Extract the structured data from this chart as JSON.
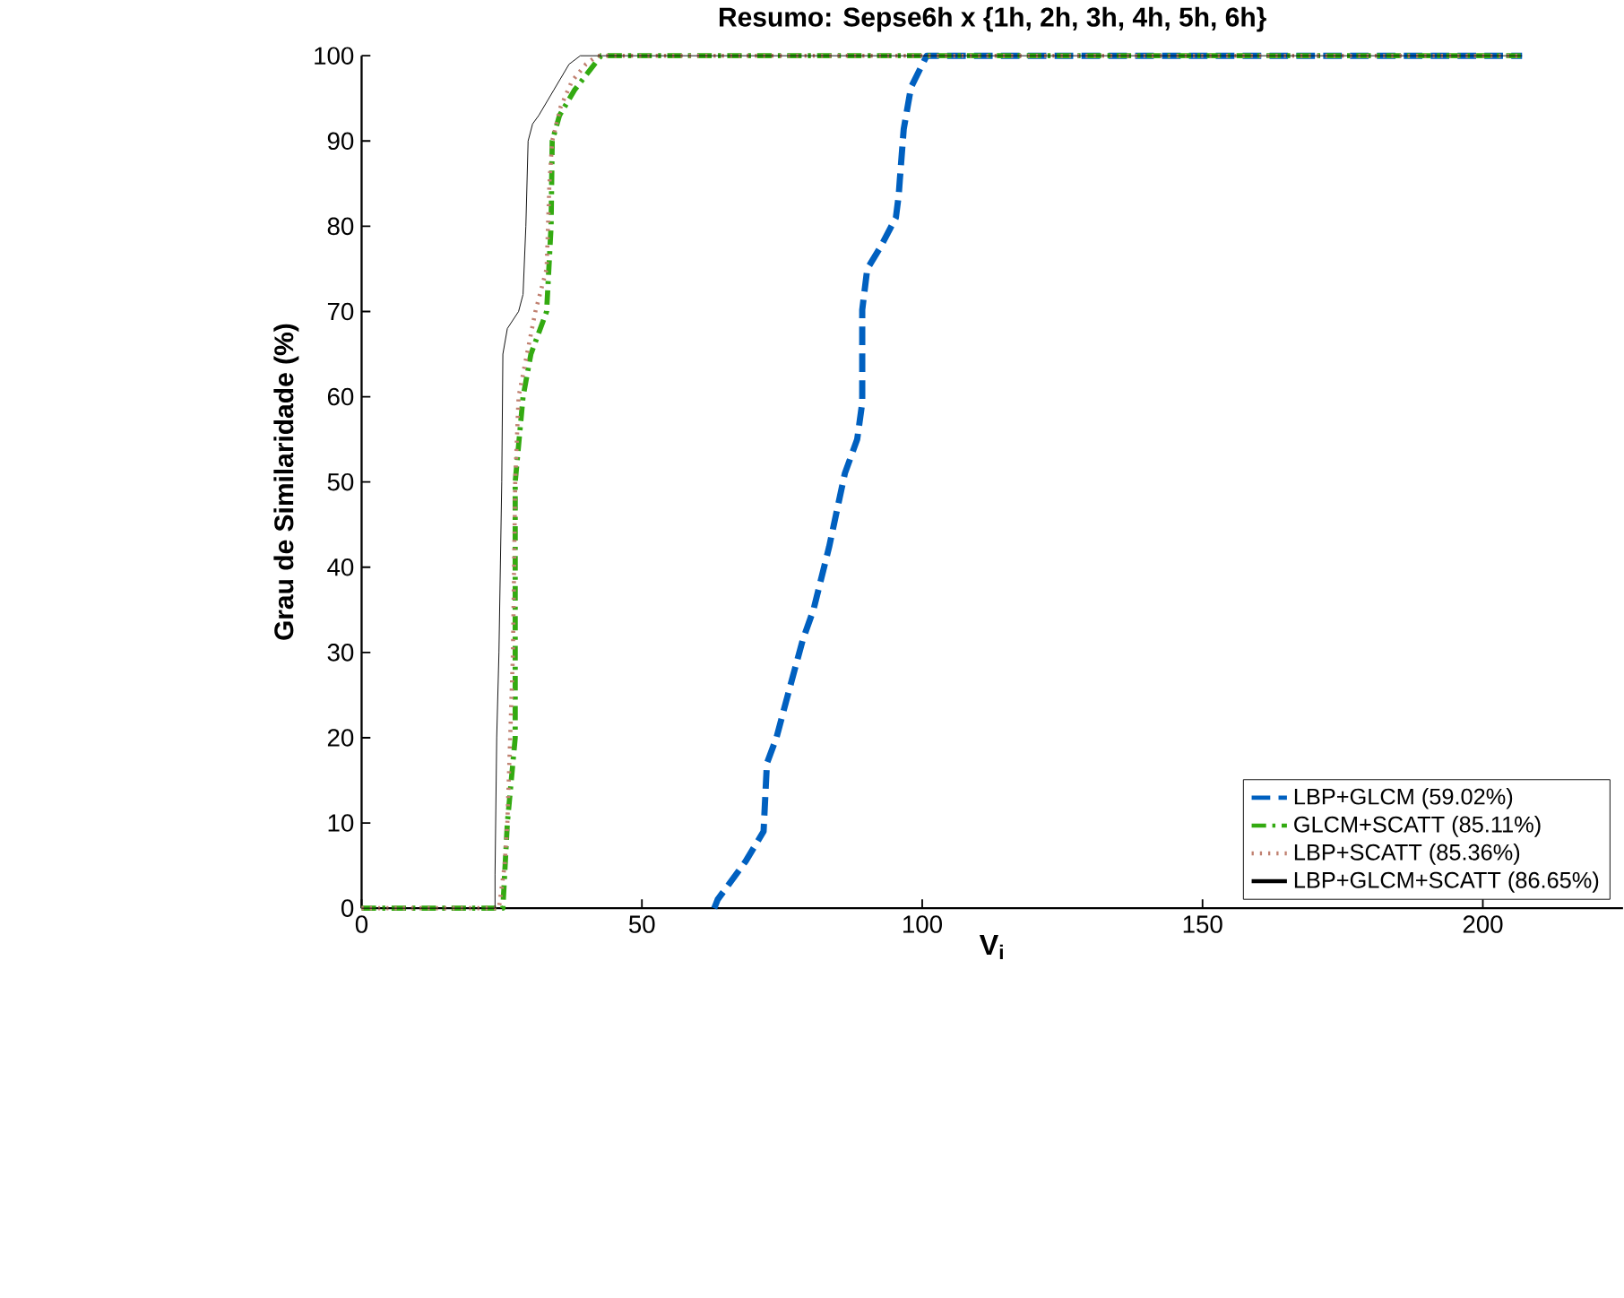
{
  "chart_data": {
    "type": "line",
    "title": "Resumo: Sepse6h x {1h, 2h, 3h, 4h, 5h, 6h}",
    "xlabel": "V$_{i}$",
    "ylabel": "Grau de Similaridade (%)",
    "xlim": [
      0,
      225
    ],
    "xticks": [
      0,
      50,
      100,
      150,
      200
    ],
    "ylim": [
      0,
      100
    ],
    "yticks": [
      0,
      10,
      20,
      30,
      40,
      50,
      60,
      70,
      80,
      90,
      100
    ],
    "grid": false,
    "legend": "bottom right",
    "marker": "none",
    "series": [
      {
        "name": "LBP+GLCM (59.02%)",
        "color": "#0060c0",
        "line_style": "dashed",
        "x": [
          62.9,
          63.5,
          68.5,
          71.7,
          72.3,
          74,
          75.9,
          78.7,
          80.6,
          83.4,
          86.2,
          88.4,
          89.3,
          89.3,
          90.2,
          92.5,
          95.3,
          95.8,
          96,
          96.7,
          98,
          100.8,
          207
        ],
        "values": [
          0,
          1,
          5.5,
          9,
          17,
          20,
          24.7,
          31.5,
          35,
          42.4,
          51,
          55,
          59.3,
          70.2,
          75,
          77.5,
          81,
          83.6,
          85.4,
          91.4,
          96.3,
          100,
          100
        ]
      },
      {
        "name": "GLCM+SCATT (85.11%)",
        "color": "#33aa11",
        "line_style": "dashdot",
        "x": [
          0,
          25.2,
          26,
          27.4,
          27.4,
          28.8,
          30.2,
          33,
          33.8,
          34,
          35.3,
          38,
          42.7,
          207
        ],
        "values": [
          0,
          0,
          10,
          20,
          50,
          60,
          65,
          70,
          80,
          90,
          93,
          96,
          100,
          100
        ]
      },
      {
        "name": "LBP+SCATT (85.36%)",
        "color": "#c08070",
        "line_style": "dotted",
        "x": [
          0,
          24.5,
          25.5,
          26,
          27,
          27.4,
          28,
          29.5,
          31,
          33,
          33.5,
          34,
          35.5,
          37.5,
          40,
          42,
          207
        ],
        "values": [
          0,
          0,
          5,
          10,
          30,
          50,
          60,
          65,
          70,
          75,
          85,
          90,
          94,
          97,
          99,
          100,
          100
        ]
      },
      {
        "name": "LBP+GLCM+SCATT (86.65%)",
        "color": "#000000",
        "line_style": "solid",
        "x": [
          0,
          23.8,
          23.8,
          24.1,
          24.5,
          25,
          25.2,
          26,
          28,
          28.8,
          29.3,
          29.7,
          30.5,
          31.6,
          34.3,
          37,
          39,
          207
        ],
        "values": [
          0,
          0,
          4,
          20,
          30,
          50,
          65,
          68,
          70,
          72,
          80,
          90,
          92,
          93,
          96,
          99,
          100,
          100
        ]
      }
    ]
  }
}
